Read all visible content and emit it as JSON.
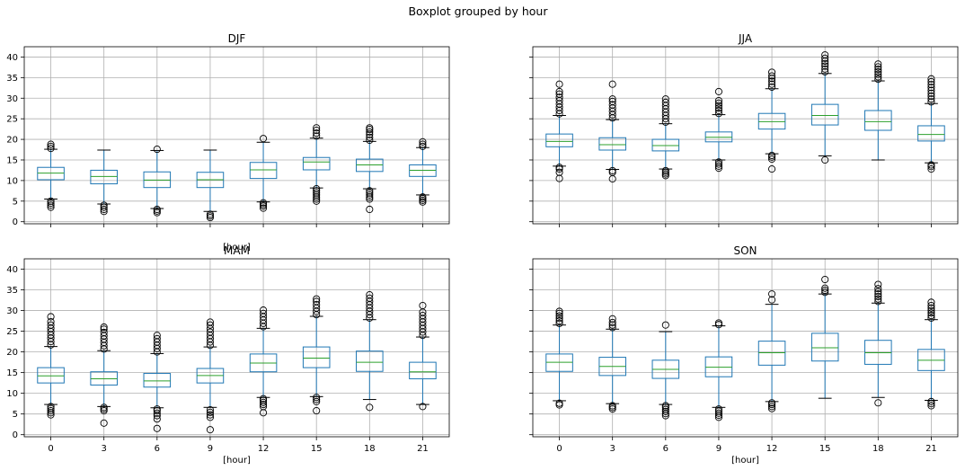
{
  "suptitle": "Boxplot grouped by hour",
  "colors": {
    "box": "#1f77b4",
    "median": "#2ca02c",
    "whisker": "#1f77b4",
    "flier": "#000000",
    "grid": "#b0b0b0"
  },
  "chart_data": [
    {
      "type": "box",
      "title": "DJF",
      "xlabel": "[hour]",
      "categories": [
        "0",
        "3",
        "6",
        "9",
        "12",
        "15",
        "18",
        "21"
      ],
      "ylim": [
        -0.5,
        42.5
      ],
      "yticks": [
        "0",
        "5",
        "10",
        "15",
        "20",
        "25",
        "30",
        "35",
        "40"
      ],
      "grid": true,
      "boxes": [
        {
          "whislo": 5.5,
          "q1": 10.2,
          "med": 11.8,
          "q3": 13.2,
          "whishi": 17.6,
          "fliers": [
            3.5,
            4.0,
            4.5,
            5.0,
            17.8,
            18.3,
            18.8
          ]
        },
        {
          "whislo": 4.3,
          "q1": 9.2,
          "med": 11.0,
          "q3": 12.5,
          "whishi": 17.4,
          "fliers": [
            2.5,
            3.0,
            3.5,
            4.0
          ]
        },
        {
          "whislo": 3.2,
          "q1": 8.3,
          "med": 10.1,
          "q3": 12.1,
          "whishi": 17.3,
          "fliers": [
            2.2,
            2.6,
            3.0,
            17.6
          ]
        },
        {
          "whislo": 2.5,
          "q1": 8.3,
          "med": 10.2,
          "q3": 12.0,
          "whishi": 17.4,
          "fliers": [
            1.0,
            1.4,
            1.8
          ]
        },
        {
          "whislo": 4.8,
          "q1": 10.5,
          "med": 12.6,
          "q3": 14.4,
          "whishi": 19.3,
          "fliers": [
            3.3,
            3.8,
            4.2,
            4.6,
            20.2
          ]
        },
        {
          "whislo": 8.2,
          "q1": 12.6,
          "med": 14.5,
          "q3": 15.6,
          "whishi": 20.3,
          "fliers": [
            5.0,
            5.5,
            6.0,
            6.5,
            7.0,
            7.5,
            8.0,
            20.8,
            21.5,
            22.2,
            22.8
          ]
        },
        {
          "whislo": 8.0,
          "q1": 12.2,
          "med": 13.8,
          "q3": 15.2,
          "whishi": 19.5,
          "fliers": [
            3.0,
            5.5,
            6.0,
            6.5,
            7.0,
            7.5,
            19.8,
            20.5,
            21.2,
            21.8,
            22.4,
            22.8
          ]
        },
        {
          "whislo": 6.5,
          "q1": 11.0,
          "med": 12.5,
          "q3": 13.8,
          "whishi": 18.0,
          "fliers": [
            4.8,
            5.2,
            5.6,
            6.0,
            18.3,
            18.8,
            19.4
          ]
        }
      ]
    },
    {
      "type": "box",
      "title": "JJA",
      "xlabel": "",
      "categories": [
        "0",
        "3",
        "6",
        "9",
        "12",
        "15",
        "18",
        "21"
      ],
      "ylim": [
        -0.5,
        42.5
      ],
      "yticks": [],
      "grid": true,
      "boxes": [
        {
          "whislo": 13.5,
          "q1": 18.2,
          "med": 19.5,
          "q3": 21.3,
          "whishi": 25.8,
          "fliers": [
            10.5,
            12.0,
            12.8,
            13.2,
            26.2,
            27.0,
            27.8,
            28.6,
            29.4,
            30.2,
            31.0,
            31.6,
            33.4
          ]
        },
        {
          "whislo": 12.7,
          "q1": 17.4,
          "med": 18.7,
          "q3": 20.4,
          "whishi": 24.8,
          "fliers": [
            10.4,
            12.0,
            12.4,
            25.2,
            26.0,
            26.8,
            27.6,
            28.4,
            29.2,
            29.8,
            33.4
          ]
        },
        {
          "whislo": 12.8,
          "q1": 17.2,
          "med": 18.5,
          "q3": 20.0,
          "whishi": 23.8,
          "fliers": [
            11.2,
            11.6,
            12.0,
            12.4,
            24.2,
            25.0,
            25.8,
            26.6,
            27.4,
            28.2,
            29.0,
            29.8
          ]
        },
        {
          "whislo": 15.0,
          "q1": 19.4,
          "med": 20.5,
          "q3": 21.8,
          "whishi": 26.0,
          "fliers": [
            13.0,
            13.5,
            14.0,
            14.5,
            26.3,
            27.0,
            27.6,
            28.2,
            28.8,
            29.4,
            31.6
          ]
        },
        {
          "whislo": 16.5,
          "q1": 22.5,
          "med": 24.3,
          "q3": 26.3,
          "whishi": 32.3,
          "fliers": [
            12.8,
            15.2,
            15.7,
            16.1,
            32.7,
            33.4,
            34.1,
            34.8,
            35.4,
            36.3
          ]
        },
        {
          "whislo": 16.0,
          "q1": 23.5,
          "med": 25.8,
          "q3": 28.5,
          "whishi": 36.0,
          "fliers": [
            15.0,
            36.4,
            37.1,
            37.8,
            38.4,
            39.0,
            39.7,
            40.5
          ]
        },
        {
          "whislo": 15.0,
          "q1": 22.2,
          "med": 24.3,
          "q3": 27.0,
          "whishi": 34.2,
          "fliers": [
            34.6,
            35.2,
            35.8,
            36.4,
            37.0,
            37.6,
            38.3
          ]
        },
        {
          "whislo": 14.3,
          "q1": 19.6,
          "med": 21.2,
          "q3": 23.3,
          "whishi": 28.7,
          "fliers": [
            12.8,
            13.4,
            13.8,
            29.1,
            29.8,
            30.5,
            31.2,
            31.9,
            32.6,
            33.3,
            34.0,
            34.7
          ]
        }
      ]
    },
    {
      "type": "box",
      "title": "MAM",
      "xlabel": "[hour]",
      "categories": [
        "0",
        "3",
        "6",
        "9",
        "12",
        "15",
        "18",
        "21"
      ],
      "ylim": [
        -0.5,
        42.5
      ],
      "yticks": [
        "0",
        "5",
        "10",
        "15",
        "20",
        "25",
        "30",
        "35",
        "40"
      ],
      "grid": true,
      "boxes": [
        {
          "whislo": 7.3,
          "q1": 12.5,
          "med": 14.2,
          "q3": 16.2,
          "whishi": 21.3,
          "fliers": [
            4.8,
            5.3,
            5.8,
            6.3,
            6.8,
            21.7,
            22.5,
            23.3,
            24.1,
            24.9,
            25.7,
            26.5,
            27.3,
            28.5
          ]
        },
        {
          "whislo": 6.8,
          "q1": 12.0,
          "med": 13.5,
          "q3": 15.2,
          "whishi": 20.3,
          "fliers": [
            2.8,
            5.8,
            6.2,
            6.6,
            20.7,
            21.5,
            22.3,
            23.1,
            23.9,
            24.7,
            25.5,
            26.0
          ]
        },
        {
          "whislo": 6.5,
          "q1": 11.5,
          "med": 13.0,
          "q3": 14.8,
          "whishi": 19.6,
          "fliers": [
            1.5,
            3.8,
            4.6,
            5.2,
            5.8,
            6.2,
            20.0,
            20.8,
            21.6,
            22.4,
            23.2,
            24.0
          ]
        },
        {
          "whislo": 6.6,
          "q1": 12.5,
          "med": 14.3,
          "q3": 16.0,
          "whishi": 21.2,
          "fliers": [
            1.2,
            4.2,
            4.8,
            5.4,
            6.0,
            21.6,
            22.4,
            23.2,
            24.0,
            24.8,
            25.6,
            26.5,
            27.2
          ]
        },
        {
          "whislo": 9.0,
          "q1": 15.2,
          "med": 17.3,
          "q3": 19.5,
          "whishi": 25.7,
          "fliers": [
            5.3,
            6.8,
            7.3,
            7.8,
            8.3,
            8.7,
            26.1,
            26.9,
            27.7,
            28.5,
            29.3,
            30.1
          ]
        },
        {
          "whislo": 9.2,
          "q1": 16.2,
          "med": 18.5,
          "q3": 21.2,
          "whishi": 28.6,
          "fliers": [
            5.8,
            8.0,
            8.5,
            9.0,
            29.0,
            29.8,
            30.6,
            31.4,
            32.2,
            32.8
          ]
        },
        {
          "whislo": 8.5,
          "q1": 15.3,
          "med": 17.5,
          "q3": 20.2,
          "whishi": 27.8,
          "fliers": [
            6.6,
            28.2,
            29.0,
            29.8,
            30.6,
            31.4,
            32.2,
            33.0,
            33.8
          ]
        },
        {
          "whislo": 7.3,
          "q1": 13.5,
          "med": 15.2,
          "q3": 17.5,
          "whishi": 23.6,
          "fliers": [
            6.8,
            24.0,
            24.8,
            25.6,
            26.4,
            27.2,
            28.0,
            28.8,
            29.6,
            31.2
          ]
        }
      ]
    },
    {
      "type": "box",
      "title": "SON",
      "xlabel": "[hour]",
      "categories": [
        "0",
        "3",
        "6",
        "9",
        "12",
        "15",
        "18",
        "21"
      ],
      "ylim": [
        -0.5,
        42.5
      ],
      "yticks": [],
      "grid": true,
      "boxes": [
        {
          "whislo": 8.2,
          "q1": 15.3,
          "med": 17.5,
          "q3": 19.5,
          "whishi": 26.5,
          "fliers": [
            7.2,
            7.6,
            26.9,
            27.5,
            28.1,
            28.7,
            29.3,
            29.8
          ]
        },
        {
          "whislo": 7.5,
          "q1": 14.3,
          "med": 16.5,
          "q3": 18.7,
          "whishi": 25.5,
          "fliers": [
            6.2,
            6.6,
            7.0,
            25.9,
            26.5,
            27.1,
            28.0
          ]
        },
        {
          "whislo": 7.3,
          "q1": 13.6,
          "med": 15.8,
          "q3": 18.0,
          "whishi": 24.9,
          "fliers": [
            4.6,
            5.1,
            5.6,
            6.1,
            6.6,
            7.0,
            26.5
          ]
        },
        {
          "whislo": 6.6,
          "q1": 14.0,
          "med": 16.3,
          "q3": 18.8,
          "whishi": 26.3,
          "fliers": [
            4.2,
            4.7,
            5.2,
            5.7,
            6.2,
            26.6,
            27.0
          ]
        },
        {
          "whislo": 8.0,
          "q1": 16.8,
          "med": 19.8,
          "q3": 22.6,
          "whishi": 31.5,
          "fliers": [
            6.3,
            6.8,
            7.3,
            7.7,
            32.6,
            34.0
          ]
        },
        {
          "whislo": 8.8,
          "q1": 17.8,
          "med": 21.0,
          "q3": 24.5,
          "whishi": 34.0,
          "fliers": [
            34.4,
            34.9,
            35.4,
            37.5
          ]
        },
        {
          "whislo": 9.0,
          "q1": 17.0,
          "med": 19.8,
          "q3": 22.8,
          "whishi": 31.8,
          "fliers": [
            7.7,
            32.2,
            32.8,
            33.4,
            34.0,
            34.6,
            35.3,
            36.3
          ]
        },
        {
          "whislo": 8.3,
          "q1": 15.5,
          "med": 18.0,
          "q3": 20.6,
          "whishi": 27.8,
          "fliers": [
            7.0,
            7.5,
            8.0,
            28.2,
            28.8,
            29.4,
            30.0,
            30.6,
            31.2,
            32.0
          ]
        }
      ]
    }
  ]
}
